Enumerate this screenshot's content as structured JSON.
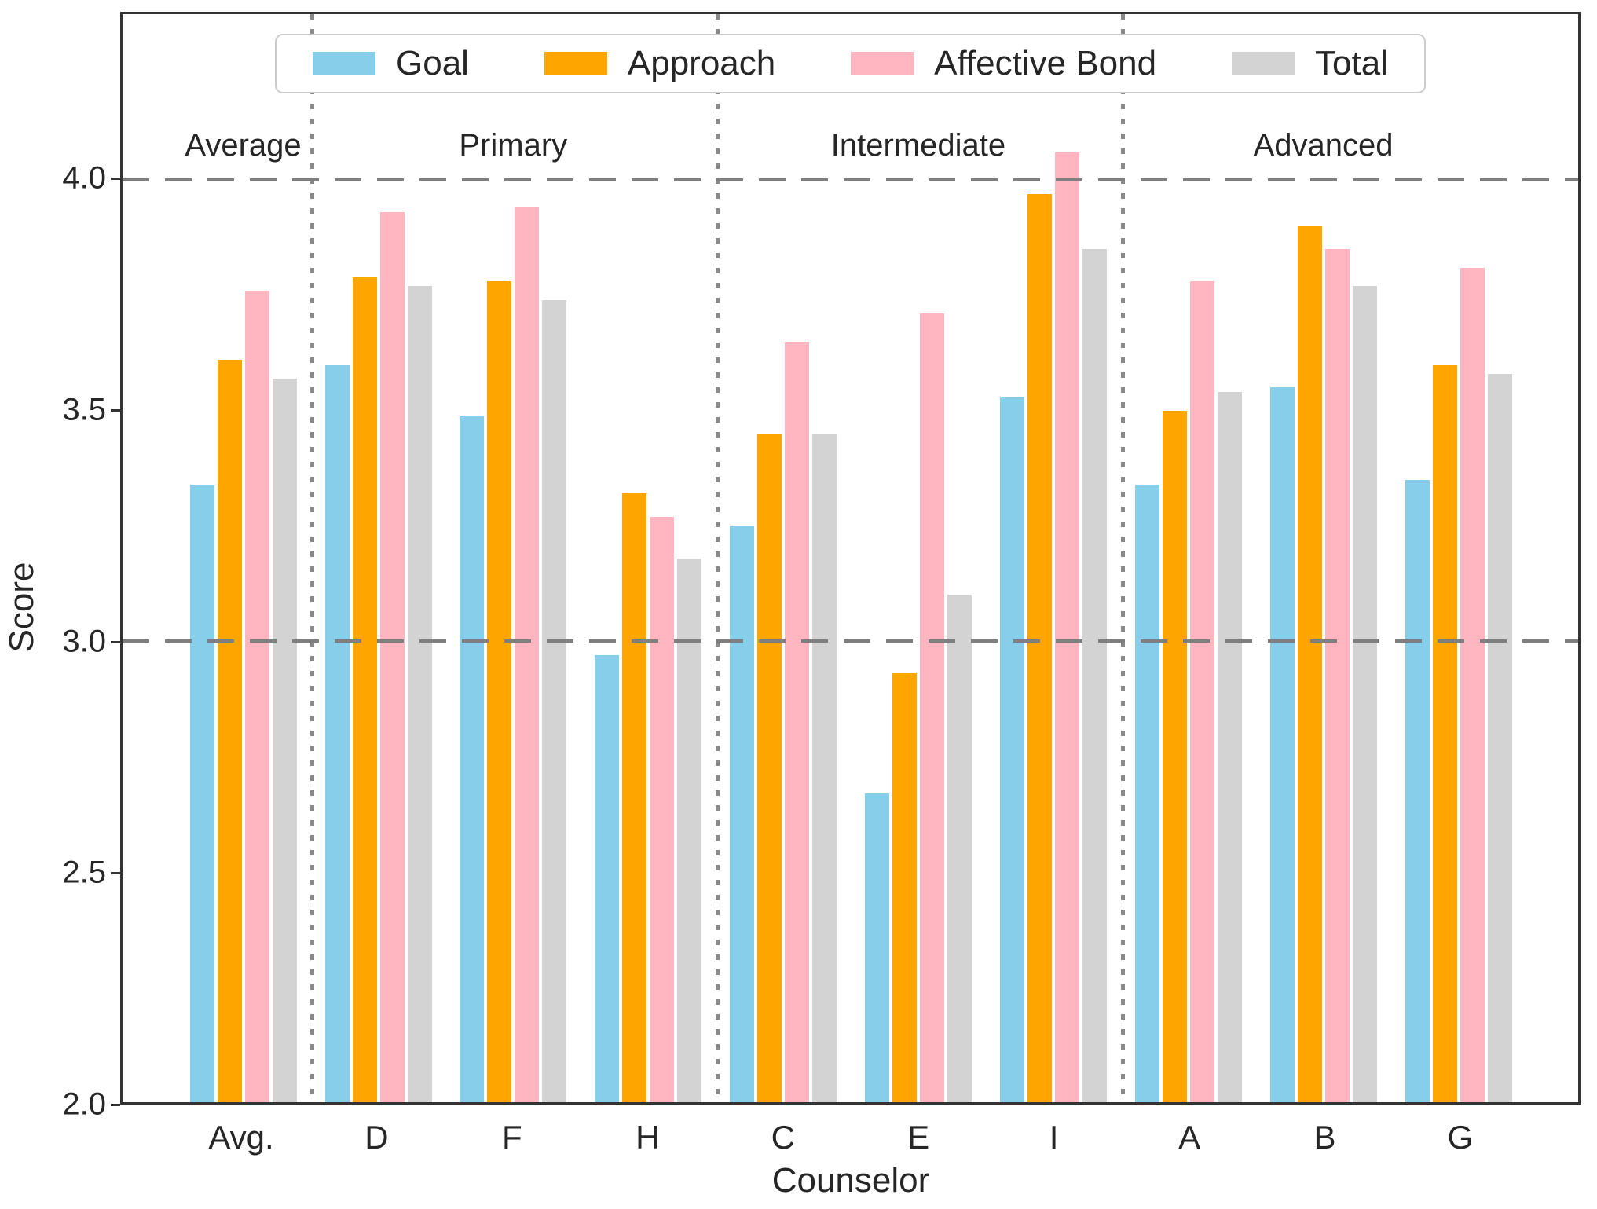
{
  "axes": {
    "ylabel": "Score",
    "xlabel": "Counselor",
    "yticks": [
      "4.0",
      "3.5",
      "3.0",
      "2.5",
      "2.0"
    ],
    "ytick_values": [
      4.0,
      3.5,
      3.0,
      2.5,
      2.0
    ]
  },
  "chart_data": {
    "type": "bar",
    "title": "",
    "xlabel": "Counselor",
    "ylabel": "Score",
    "ylim": [
      2.0,
      4.36
    ],
    "grid_hlines": [
      4.0,
      3.0
    ],
    "legend_position": "upper center",
    "categories": [
      "Avg.",
      "D",
      "F",
      "H",
      "C",
      "E",
      "I",
      "A",
      "B",
      "G"
    ],
    "series": [
      {
        "name": "Goal",
        "color": "#87CEEB",
        "values": [
          3.34,
          3.6,
          3.49,
          2.97,
          3.25,
          2.67,
          3.53,
          3.34,
          3.55,
          3.35
        ]
      },
      {
        "name": "Approach",
        "color": "#FFA500",
        "values": [
          3.61,
          3.79,
          3.78,
          3.32,
          3.45,
          2.93,
          3.97,
          3.5,
          3.9,
          3.6
        ]
      },
      {
        "name": "Affective Bond",
        "color": "#FFB6C1",
        "values": [
          3.76,
          3.93,
          3.94,
          3.27,
          3.65,
          3.71,
          4.06,
          3.78,
          3.85,
          3.81
        ]
      },
      {
        "name": "Total",
        "color": "#D3D3D3",
        "values": [
          3.57,
          3.77,
          3.74,
          3.18,
          3.45,
          3.1,
          3.85,
          3.54,
          3.77,
          3.58
        ]
      }
    ],
    "sections": [
      {
        "label": "Average",
        "categories": [
          "Avg."
        ]
      },
      {
        "label": "Primary",
        "categories": [
          "D",
          "F",
          "H"
        ]
      },
      {
        "label": "Intermediate",
        "categories": [
          "C",
          "E",
          "I"
        ]
      },
      {
        "label": "Advanced",
        "categories": [
          "A",
          "B",
          "G"
        ]
      }
    ],
    "separators_after_category_index": [
      0,
      3,
      6
    ],
    "colors": {
      "gridline": "#7f7f7f",
      "separator": "#8a8a8a",
      "spine": "#333333",
      "text": "#262626"
    }
  }
}
